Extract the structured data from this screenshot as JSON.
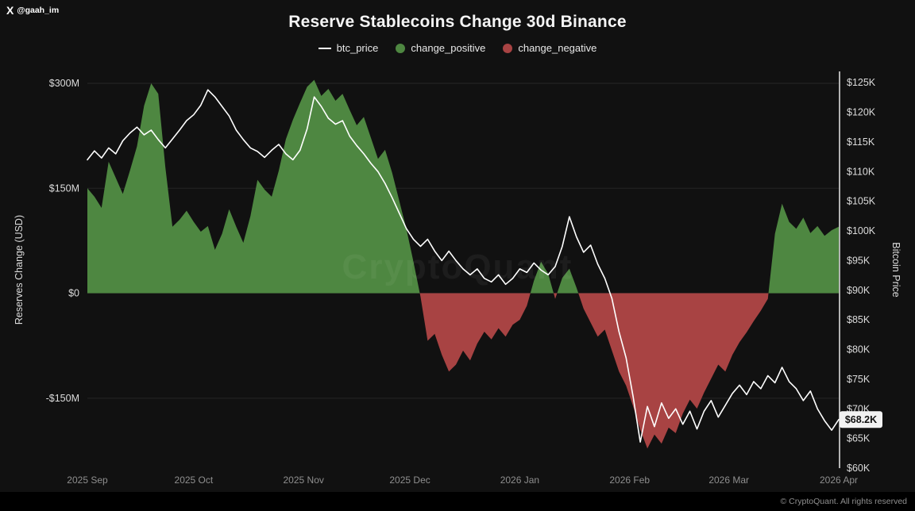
{
  "page": {
    "handle": "@gaah_im",
    "x_glyph": "X",
    "watermark": "CryptoQuant",
    "copyright": "© CryptoQuant. All rights reserved"
  },
  "header": {
    "title": "Reserve Stablecoins Change 30d Binance"
  },
  "legend": [
    {
      "label": "btc_price",
      "type": "line",
      "color": "#ffffff"
    },
    {
      "label": "change_positive",
      "type": "dot",
      "color": "#4e8741"
    },
    {
      "label": "change_negative",
      "type": "dot",
      "color": "#a84343"
    }
  ],
  "colors": {
    "background": "#111111",
    "footer": "#000000",
    "positive": "#4e8741",
    "negative": "#a84343",
    "price_line": "#ffffff",
    "grid": "#262626",
    "zero_line": "#1c1c1c",
    "axis_text": "#dcdcdc",
    "x_text": "#8f8f8f",
    "right_spine": "#e8e8e8",
    "badge_bg": "#f2f2f2",
    "badge_text": "#111111"
  },
  "chart_data": {
    "type": "area+line",
    "title": "Reserve Stablecoins Change 30d Binance",
    "x_unit": "days since 2025-09-01",
    "x_domain": [
      0,
      212
    ],
    "x": [
      0,
      2,
      4,
      6,
      8,
      10,
      12,
      14,
      16,
      18,
      20,
      22,
      24,
      26,
      28,
      30,
      32,
      34,
      36,
      38,
      40,
      42,
      44,
      46,
      48,
      50,
      52,
      54,
      56,
      58,
      60,
      62,
      64,
      66,
      68,
      70,
      72,
      74,
      76,
      78,
      80,
      82,
      84,
      86,
      88,
      90,
      92,
      94,
      96,
      98,
      100,
      102,
      104,
      106,
      108,
      110,
      112,
      114,
      116,
      118,
      120,
      122,
      124,
      126,
      128,
      130,
      132,
      134,
      136,
      138,
      140,
      142,
      144,
      146,
      148,
      150,
      152,
      154,
      156,
      158,
      160,
      162,
      164,
      166,
      168,
      170,
      172,
      174,
      176,
      178,
      180,
      182,
      184,
      186,
      188,
      190,
      192,
      194,
      196,
      198,
      200,
      202,
      204,
      206,
      208,
      210,
      212
    ],
    "series": [
      {
        "name": "change_30d_reserves",
        "axis": "left",
        "type": "area",
        "unit": "USD millions",
        "positive_color": "#4e8741",
        "negative_color": "#a84343",
        "values": [
          150,
          138,
          122,
          188,
          165,
          142,
          175,
          210,
          268,
          300,
          285,
          180,
          95,
          105,
          118,
          102,
          88,
          96,
          62,
          85,
          120,
          95,
          72,
          110,
          162,
          148,
          138,
          175,
          220,
          248,
          272,
          295,
          305,
          282,
          292,
          275,
          285,
          262,
          240,
          252,
          222,
          192,
          205,
          172,
          132,
          92,
          45,
          -5,
          -68,
          -58,
          -88,
          -112,
          -102,
          -82,
          -96,
          -72,
          -55,
          -66,
          -50,
          -62,
          -45,
          -38,
          -18,
          18,
          45,
          28,
          -8,
          22,
          35,
          8,
          -22,
          -42,
          -62,
          -52,
          -82,
          -112,
          -132,
          -162,
          -195,
          -222,
          -202,
          -215,
          -192,
          -200,
          -172,
          -152,
          -165,
          -142,
          -122,
          -102,
          -112,
          -88,
          -70,
          -56,
          -40,
          -25,
          -8,
          85,
          128,
          102,
          92,
          108,
          86,
          96,
          82,
          90,
          95
        ]
      },
      {
        "name": "btc_price",
        "axis": "right",
        "type": "line",
        "unit": "USD thousands",
        "color": "#ffffff",
        "values": [
          112.0,
          113.5,
          112.3,
          114.0,
          113.0,
          115.2,
          116.5,
          117.5,
          116.2,
          117.0,
          115.4,
          114.0,
          115.5,
          117.0,
          118.6,
          119.6,
          121.2,
          123.8,
          122.6,
          121.0,
          119.4,
          117.0,
          115.4,
          114.0,
          113.4,
          112.4,
          113.6,
          114.6,
          113.0,
          112.0,
          113.6,
          117.2,
          122.6,
          121.0,
          119.0,
          118.0,
          118.6,
          116.0,
          114.4,
          113.0,
          111.4,
          110.0,
          108.0,
          105.6,
          103.0,
          100.4,
          98.6,
          97.4,
          98.6,
          96.6,
          95.0,
          96.6,
          95.0,
          93.6,
          92.6,
          93.6,
          92.0,
          91.4,
          92.6,
          91.0,
          92.0,
          93.6,
          93.0,
          94.6,
          93.4,
          92.6,
          94.0,
          97.4,
          102.4,
          99.0,
          96.4,
          97.6,
          94.4,
          92.0,
          88.6,
          83.0,
          78.6,
          72.0,
          64.4,
          70.4,
          67.0,
          71.0,
          68.4,
          70.0,
          67.4,
          69.6,
          66.6,
          69.6,
          71.4,
          68.6,
          70.6,
          72.6,
          74.0,
          72.4,
          74.6,
          73.4,
          75.6,
          74.4,
          77.0,
          74.6,
          73.4,
          71.4,
          73.0,
          70.0,
          68.0,
          66.4,
          68.2
        ]
      }
    ],
    "left_axis": {
      "label": "Reserves Change (USD)",
      "domain": [
        -250,
        317
      ],
      "ticks": [
        {
          "value": 300,
          "label": "$300M"
        },
        {
          "value": 150,
          "label": "$150M"
        },
        {
          "value": 0,
          "label": "$0"
        },
        {
          "value": -150,
          "label": "-$150M"
        }
      ]
    },
    "right_axis": {
      "label": "Bitcoin Price",
      "domain": [
        60,
        126.9
      ],
      "ticks": [
        {
          "value": 125,
          "label": "$125K"
        },
        {
          "value": 120,
          "label": "$120K"
        },
        {
          "value": 115,
          "label": "$115K"
        },
        {
          "value": 110,
          "label": "$110K"
        },
        {
          "value": 105,
          "label": "$105K"
        },
        {
          "value": 100,
          "label": "$100K"
        },
        {
          "value": 95,
          "label": "$95K"
        },
        {
          "value": 90,
          "label": "$90K"
        },
        {
          "value": 85,
          "label": "$85K"
        },
        {
          "value": 80,
          "label": "$80K"
        },
        {
          "value": 75,
          "label": "$75K"
        },
        {
          "value": 70,
          "label": "$70K"
        },
        {
          "value": 65,
          "label": "$65K"
        },
        {
          "value": 60,
          "label": "$60K"
        }
      ]
    },
    "x_axis": {
      "ticks": [
        {
          "value": 0,
          "label": "2025 Sep"
        },
        {
          "value": 30,
          "label": "2025 Oct"
        },
        {
          "value": 61,
          "label": "2025 Nov"
        },
        {
          "value": 91,
          "label": "2025 Dec"
        },
        {
          "value": 122,
          "label": "2026 Jan"
        },
        {
          "value": 153,
          "label": "2026 Feb"
        },
        {
          "value": 181,
          "label": "2026 Mar"
        },
        {
          "value": 212,
          "label": "2026 Apr"
        }
      ]
    },
    "last_price_label": "$68.2K",
    "legend_position": "top",
    "grid": "horizontal-left-ticks"
  }
}
